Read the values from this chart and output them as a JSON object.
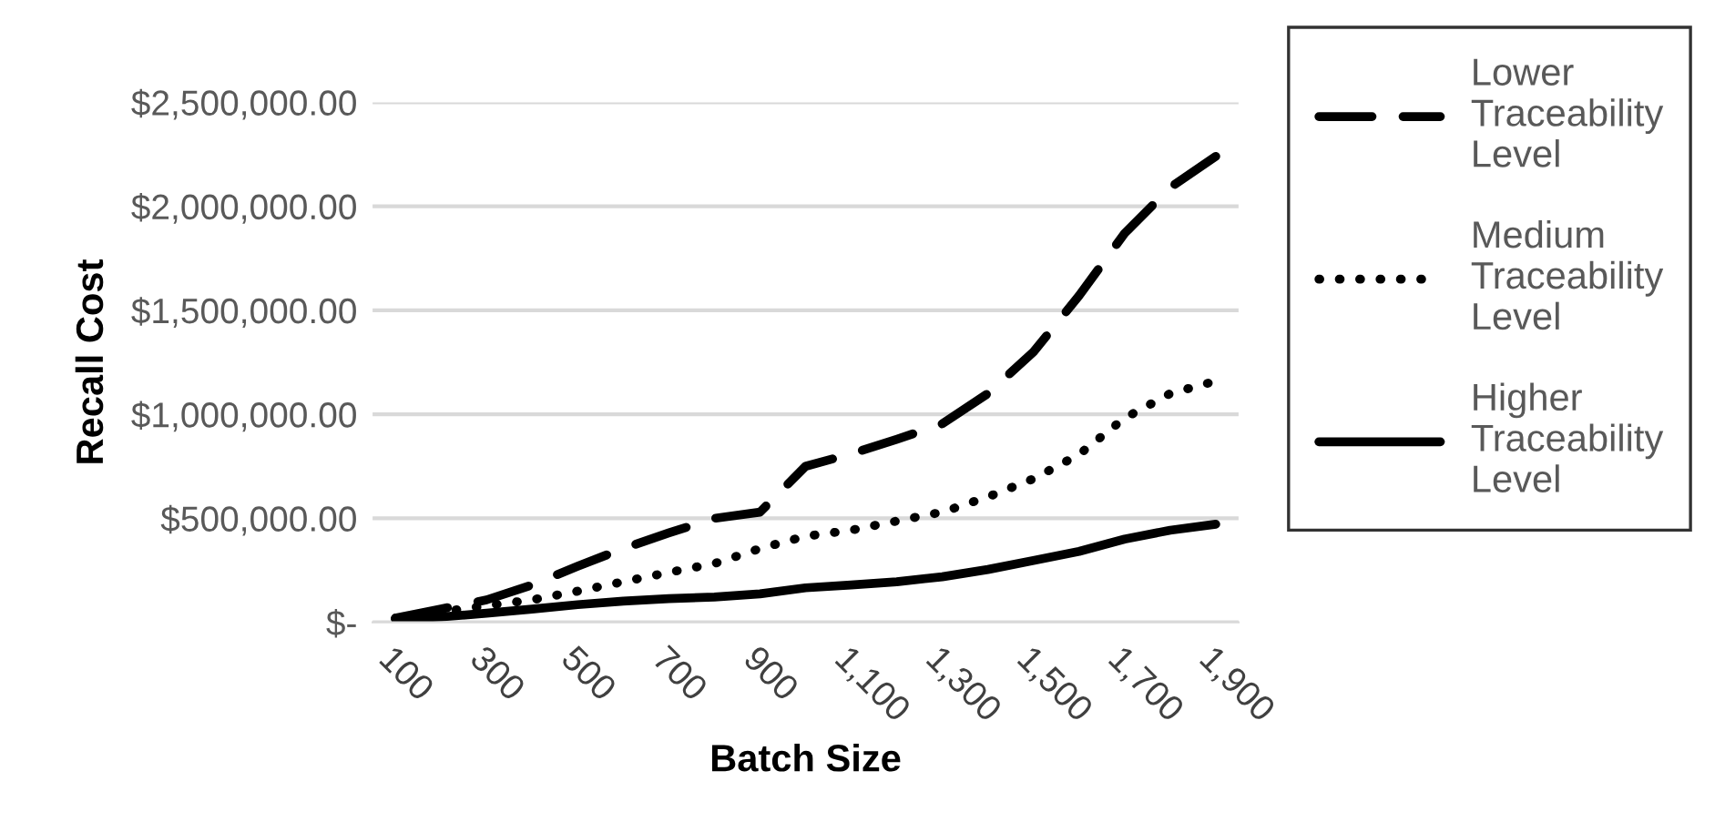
{
  "chart_data": {
    "type": "line",
    "xlabel": "Batch Size",
    "ylabel": "Recall Cost",
    "categories": [
      "100",
      null,
      "300",
      null,
      "500",
      null,
      "700",
      null,
      "900",
      null,
      "1,100",
      null,
      "1,300",
      null,
      "1,500",
      null,
      "1,700",
      null,
      "1,900"
    ],
    "series": [
      {
        "name": "Lower Traceability Level",
        "color": "#000000",
        "line_style": "dashed",
        "values": [
          20000,
          64000,
          108000,
          180000,
          270000,
          355000,
          430000,
          500000,
          530000,
          750000,
          810000,
          880000,
          955000,
          1100000,
          1300000,
          1570000,
          1870000,
          2090000,
          2240000
        ]
      },
      {
        "name": "Medium Traceability Level",
        "color": "#000000",
        "line_style": "dotted",
        "values": [
          20000,
          50000,
          80000,
          108000,
          150000,
          195000,
          240000,
          283000,
          355000,
          414000,
          443000,
          487000,
          530000,
          603000,
          690000,
          807000,
          982000,
          1100000,
          1160000
        ]
      },
      {
        "name": "Higher Traceability Level",
        "color": "#000000",
        "line_style": "solid",
        "values": [
          15000,
          26000,
          44000,
          64000,
          85000,
          102000,
          114000,
          122000,
          137000,
          166000,
          180000,
          195000,
          219000,
          254000,
          297000,
          341000,
          400000,
          443000,
          472000
        ]
      }
    ],
    "ylim": [
      0,
      2500000
    ],
    "yticks": [
      {
        "value": 0,
        "label": "$-"
      },
      {
        "value": 500000,
        "label": "$500,000.00"
      },
      {
        "value": 1000000,
        "label": "$1,000,000.00"
      },
      {
        "value": 1500000,
        "label": "$1,500,000.00"
      },
      {
        "value": 2000000,
        "label": "$2,000,000.00"
      },
      {
        "value": 2500000,
        "label": "$2,500,000.00"
      }
    ],
    "grid": "y",
    "legend": "right",
    "marker": "none"
  }
}
